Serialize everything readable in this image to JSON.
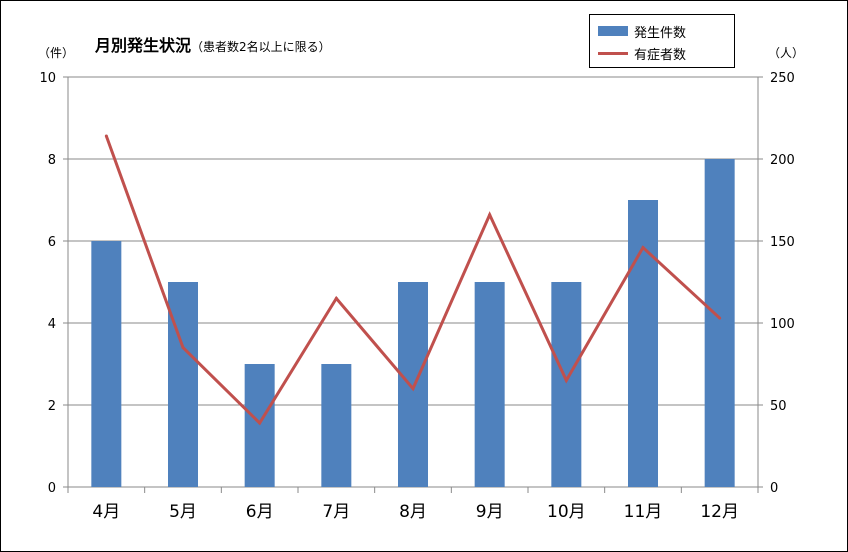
{
  "chart_data": {
    "type": "bar",
    "title": "月別発生状況",
    "subtitle": "（患者数2名以上に限る）",
    "categories": [
      "4月",
      "5月",
      "6月",
      "7月",
      "8月",
      "9月",
      "10月",
      "11月",
      "12月"
    ],
    "series": [
      {
        "name": "発生件数",
        "type": "bar",
        "axis": "left",
        "color": "#4F81BD",
        "values": [
          6,
          5,
          3,
          3,
          5,
          5,
          5,
          7,
          8
        ]
      },
      {
        "name": "有症者数",
        "type": "line",
        "axis": "right",
        "color": "#C0504D",
        "values": [
          214,
          85,
          39,
          115,
          60,
          166,
          65,
          146,
          103
        ]
      }
    ],
    "y_left": {
      "unit": "（件）",
      "ylim": [
        0,
        10
      ],
      "ticks": [
        "0",
        "2",
        "4",
        "6",
        "8",
        "10"
      ]
    },
    "y_right": {
      "unit": "（人）",
      "ylim": [
        0,
        250
      ],
      "ticks": [
        "0",
        "50",
        "100",
        "150",
        "200",
        "250"
      ]
    },
    "grid": true,
    "legend_position": "top-right"
  }
}
